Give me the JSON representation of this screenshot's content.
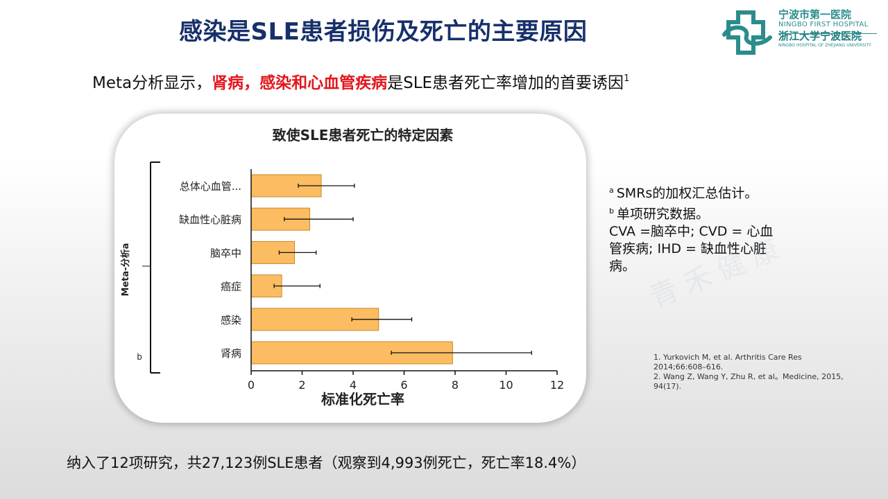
{
  "header": {
    "title": "感染是SLE患者损伤及死亡的主要原因",
    "logo_line1": "宁波市第一医院",
    "logo_line2": "NINGBO FIRST HOSPITAL",
    "logo_line3": "浙江大学宁波医院",
    "logo_line4": "NINGBO HOSPITAL OF ZHEJIANG UNIVERSITY",
    "logo_icon": "hospital-cross-logo"
  },
  "subtitle": {
    "prefix": "Meta分析显示，",
    "highlight": "肾病，感染和心血管疾病",
    "suffix": "是SLE患者死亡率增加的首要诱因",
    "ref": "1"
  },
  "chart_data": {
    "type": "bar",
    "orientation": "horizontal",
    "title": "致使SLE患者死亡的特定因素",
    "xlabel": "标准化死亡率",
    "ylabel": "",
    "xlim": [
      0,
      12
    ],
    "xticks": [
      0,
      2,
      4,
      6,
      8,
      10,
      12
    ],
    "categories": [
      "总体心血管...",
      "缺血性心脏病",
      "脑卒中",
      "癌症",
      "感染",
      "肾病"
    ],
    "values": [
      2.75,
      2.3,
      1.7,
      1.2,
      5.0,
      7.9
    ],
    "error_low": [
      1.85,
      1.3,
      1.1,
      0.9,
      3.95,
      5.5
    ],
    "error_high": [
      4.05,
      4.0,
      2.55,
      2.7,
      6.3,
      11.0
    ],
    "group_labels": [
      {
        "label": "Meta-分析a",
        "covers": [
          "总体心血管...",
          "缺血性心脏病",
          "脑卒中",
          "癌症",
          "感染"
        ]
      },
      {
        "label": "b",
        "covers": [
          "肾病"
        ]
      }
    ],
    "bar_color": "#fbbc62",
    "bar_edge_color": "#c98a2a",
    "grid": false,
    "legend": "none"
  },
  "notes": {
    "line_a_sup": "a",
    "line_a": "SMRs的加权汇总估计。",
    "line_b_sup": "b",
    "line_b": "单项研究数据。",
    "line_c": "CVA =脑卒中; CVD = 心血",
    "line_d": "管疾病; IHD = 缺血性心脏",
    "line_e": "病。"
  },
  "watermark": "青禾健康",
  "references": {
    "ref1": "1. Yurkovich M, et al. Arthritis Care Res 2014;66:608–616.",
    "ref2": "2. Wang Z, Wang Y, Zhu R, et al。Medicine, 2015, 94(17)."
  },
  "footer": "纳入了12项研究，共27,123例SLE患者（观察到4,993例死亡，死亡率18.4%）",
  "colors": {
    "title": "#17306b",
    "highlight": "#e3161c",
    "logo": "#2b8c8c"
  }
}
